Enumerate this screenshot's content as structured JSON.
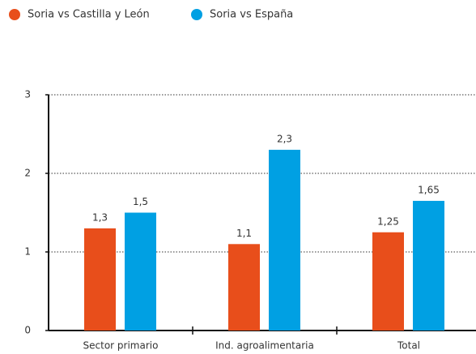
{
  "chart_data": {
    "type": "bar",
    "categories": [
      "Sector primario",
      "Ind. agroalimentaria",
      "Total"
    ],
    "series": [
      {
        "name": "Soria vs Castilla y León",
        "color": "#e84e1b",
        "values": [
          1.3,
          1.1,
          1.25
        ],
        "value_labels": [
          "1,3",
          "1,1",
          "1,25"
        ]
      },
      {
        "name": "Soria vs España",
        "color": "#00a0e3",
        "values": [
          1.5,
          2.3,
          1.65
        ],
        "value_labels": [
          "1,5",
          "2,3",
          "1,65"
        ]
      }
    ],
    "ylim": [
      0,
      3
    ],
    "yticks": [
      0,
      1,
      2,
      3
    ],
    "grid": true,
    "legend": "top"
  }
}
